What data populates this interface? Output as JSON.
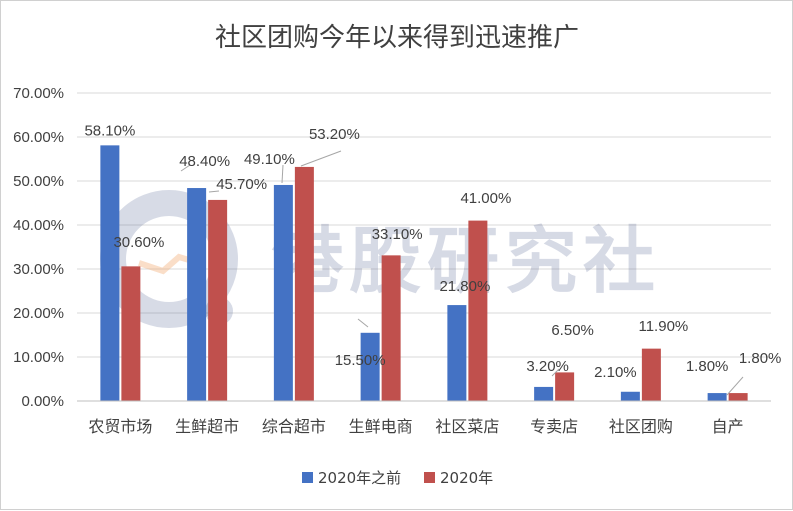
{
  "chart_data": {
    "type": "bar",
    "title": "社区团购今年以来得到迅速推广",
    "categories": [
      "农贸市场",
      "生鲜超市",
      "综合超市",
      "生鲜电商",
      "社区菜店",
      "专卖店",
      "社区团购",
      "自产"
    ],
    "series": [
      {
        "name": "2020年之前",
        "color": "#4472c4",
        "values": [
          58.1,
          48.4,
          49.1,
          15.5,
          21.8,
          3.2,
          2.1,
          1.8
        ],
        "labels": [
          "58.10%",
          "48.40%",
          "49.10%",
          "15.50%",
          "21.80%",
          "3.20%",
          "2.10%",
          "1.80%"
        ]
      },
      {
        "name": "2020年",
        "color": "#c0504d",
        "values": [
          30.6,
          45.7,
          53.2,
          33.1,
          41.0,
          6.5,
          11.9,
          1.8
        ],
        "labels": [
          "30.60%",
          "45.70%",
          "53.20%",
          "33.10%",
          "41.00%",
          "6.50%",
          "11.90%",
          "1.80%"
        ]
      }
    ],
    "yticks": [
      "0.00%",
      "10.00%",
      "20.00%",
      "30.00%",
      "40.00%",
      "50.00%",
      "60.00%",
      "70.00%"
    ],
    "ylim": [
      0,
      70
    ],
    "ystep": 10,
    "grid": true,
    "legend_position": "bottom",
    "xlabel": "",
    "ylabel": ""
  },
  "watermark": {
    "text": "港股研究社"
  }
}
